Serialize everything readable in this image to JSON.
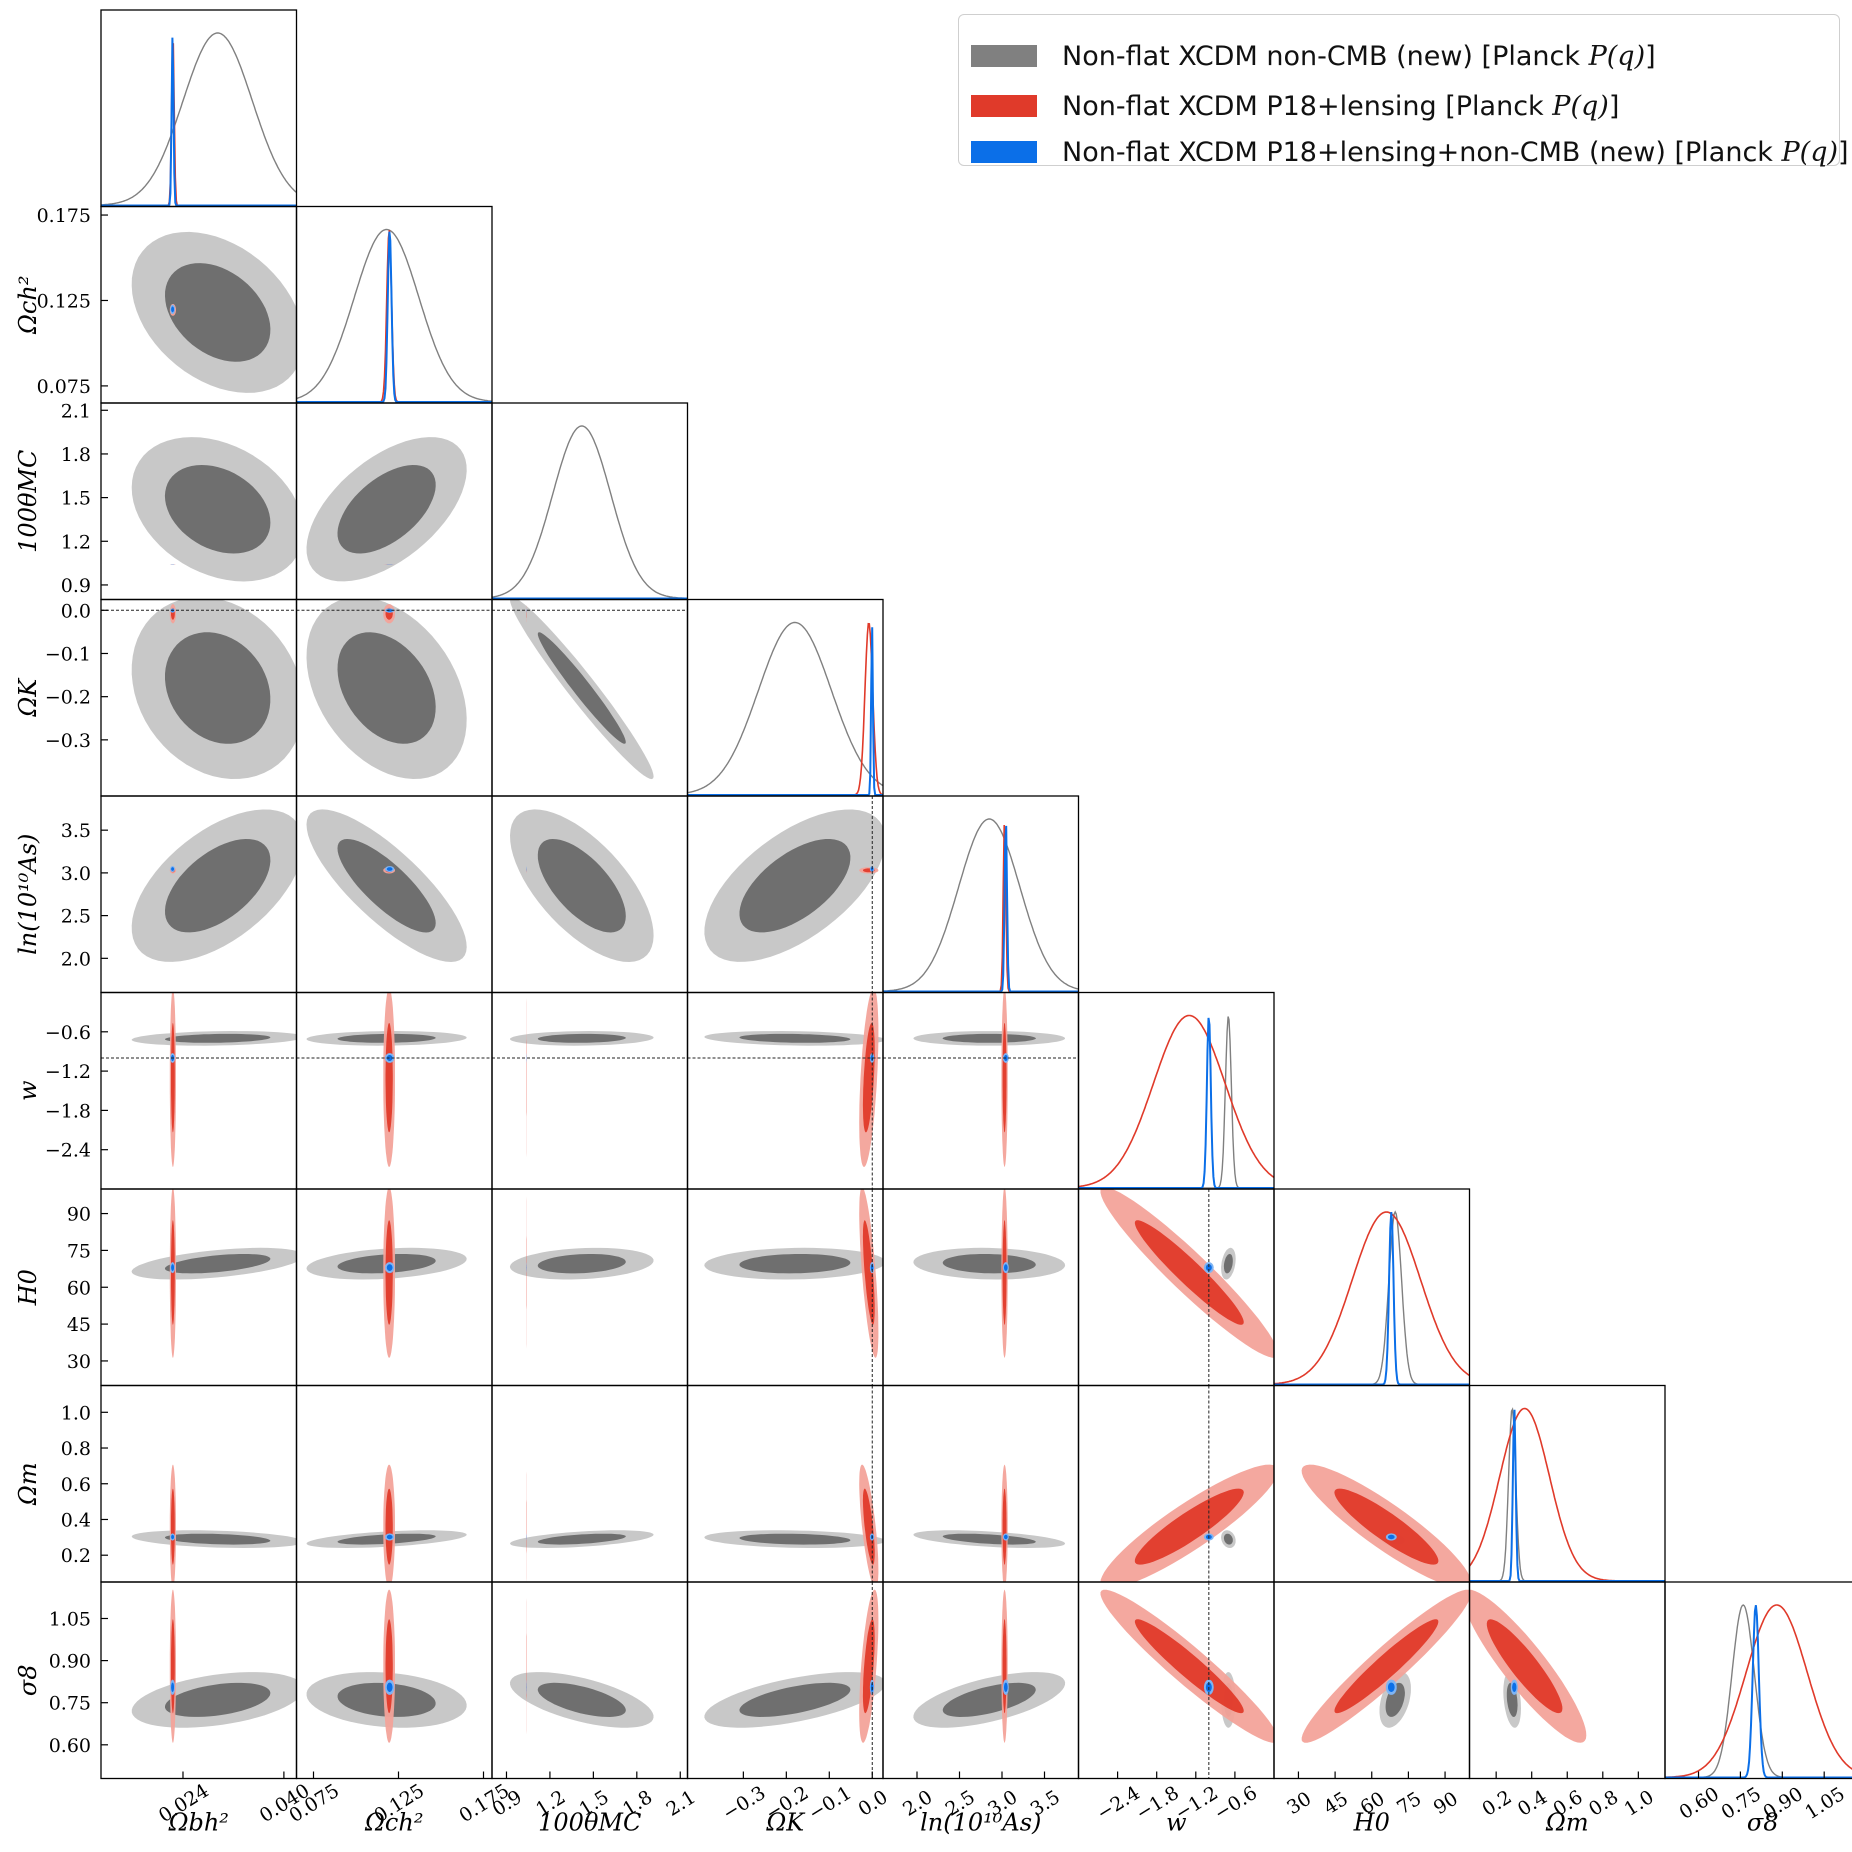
{
  "chart_data": {
    "type": "triangle-corner-plot",
    "parameters": [
      {
        "name": "ombh2",
        "label": "Ωbh²",
        "lim": [
          0.011,
          0.042
        ],
        "ticks": [
          0.024,
          0.04
        ],
        "tick_labels": [
          "0.024",
          "0.040"
        ]
      },
      {
        "name": "omch2",
        "label": "Ωch²",
        "lim": [
          0.065,
          0.18
        ],
        "ticks": [
          0.075,
          0.125,
          0.175
        ],
        "tick_labels": [
          "0.075",
          "0.125",
          "0.175"
        ]
      },
      {
        "name": "theta",
        "label": "100θMC",
        "lim": [
          0.8,
          2.15
        ],
        "ticks": [
          0.9,
          1.2,
          1.5,
          1.8,
          2.1
        ],
        "tick_labels": [
          "0.9",
          "1.2",
          "1.5",
          "1.8",
          "2.1"
        ]
      },
      {
        "name": "omegak",
        "label": "ΩK",
        "lim": [
          -0.43,
          0.025
        ],
        "ticks": [
          -0.3,
          -0.2,
          -0.1,
          0.0
        ],
        "tick_labels": [
          "−0.3",
          "−0.2",
          "−0.1",
          "0.0"
        ]
      },
      {
        "name": "logA",
        "label": "ln(10¹⁰As)",
        "lim": [
          1.6,
          3.9
        ],
        "ticks": [
          2.0,
          2.5,
          3.0,
          3.5
        ],
        "tick_labels": [
          "2.0",
          "2.5",
          "3.0",
          "3.5"
        ]
      },
      {
        "name": "w",
        "label": "w",
        "lim": [
          -3.0,
          0.0
        ],
        "ticks": [
          -2.4,
          -1.8,
          -1.2,
          -0.6
        ],
        "tick_labels": [
          "−2.4",
          "−1.8",
          "−1.2",
          "−0.6"
        ]
      },
      {
        "name": "H0",
        "label": "H0",
        "lim": [
          20,
          100
        ],
        "ticks": [
          30,
          45,
          60,
          75,
          90
        ],
        "tick_labels": [
          "30",
          "45",
          "60",
          "75",
          "90"
        ]
      },
      {
        "name": "omegam",
        "label": "Ωm",
        "lim": [
          0.05,
          1.15
        ],
        "ticks": [
          0.2,
          0.4,
          0.6,
          0.8,
          1.0
        ],
        "tick_labels": [
          "0.2",
          "0.4",
          "0.6",
          "0.8",
          "1.0"
        ]
      },
      {
        "name": "sigma8",
        "label": "σ8",
        "lim": [
          0.48,
          1.18
        ],
        "ticks": [
          0.6,
          0.75,
          0.9,
          1.05
        ],
        "tick_labels": [
          "0.60",
          "0.75",
          "0.90",
          "1.05"
        ]
      }
    ],
    "series": [
      {
        "name": "Non-flat XCDM non-CMB (new) [Planck P(q)]",
        "color": "#808080",
        "mean": [
          0.0295,
          0.118,
          1.42,
          -0.18,
          2.85,
          -0.7,
          69.6,
          0.29,
          0.76
        ],
        "sigma": [
          0.0055,
          0.019,
          0.2,
          0.085,
          0.36,
          0.045,
          2.6,
          0.02,
          0.04
        ]
      },
      {
        "name": "Non-flat XCDM P18+lensing [Planck P(q)]",
        "color": "#e03a2a",
        "mean": [
          0.0224,
          0.1195,
          1.041,
          -0.008,
          3.03,
          -1.3,
          66,
          0.36,
          0.88
        ],
        "sigma": [
          0.0002,
          0.0014,
          0.0003,
          0.009,
          0.015,
          0.55,
          14,
          0.14,
          0.11
        ]
      },
      {
        "name": "Non-flat XCDM P18+lensing+non-CMB (new) [Planck P(q)]",
        "color": "#0b6fe8",
        "mean": [
          0.02235,
          0.1198,
          1.0409,
          -0.0005,
          3.045,
          -1.0,
          68.0,
          0.302,
          0.805
        ],
        "sigma": [
          0.00015,
          0.0011,
          0.0003,
          0.002,
          0.014,
          0.03,
          0.9,
          0.008,
          0.011
        ]
      }
    ],
    "reference_lines": {
      "omegak": 0.0,
      "w": -1.0
    },
    "legend_position": "top-right"
  },
  "legend": {
    "items": [
      {
        "text": "Non-flat XCDM non-CMB (new) [Planck ",
        "math": "P(q)",
        "close": "]",
        "color": "#808080"
      },
      {
        "text": "Non-flat XCDM P18+lensing [Planck ",
        "math": "P(q)",
        "close": "]",
        "color": "#e03a2a"
      },
      {
        "text": "Non-flat XCDM P18+lensing+non-CMB (new) [Planck ",
        "math": "P(q)",
        "close": "]",
        "color": "#0b6fe8"
      }
    ]
  }
}
